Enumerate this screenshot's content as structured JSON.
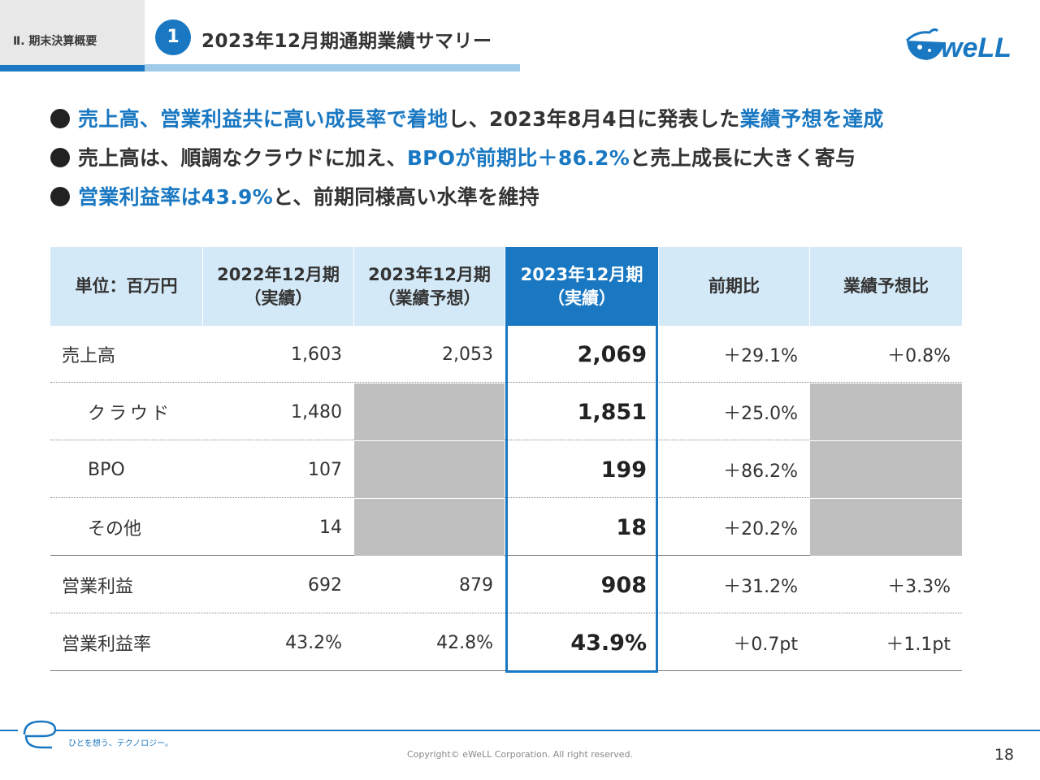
{
  "header": {
    "section": "Ⅱ. 期末決算概要",
    "number": "1",
    "title": "2023年12月期通期業績サマリー",
    "logo": "eWeLL"
  },
  "bullets": [
    {
      "parts": [
        {
          "text": "売上高、営業利益共に高い成長率で着地",
          "highlight": true
        },
        {
          "text": "し、2023年8月4日に発表した",
          "highlight": false
        },
        {
          "text": "業績予想を達成",
          "highlight": true
        }
      ]
    },
    {
      "parts": [
        {
          "text": "売上高は、順調なクラウドに加え、",
          "highlight": false
        },
        {
          "text": "BPOが前期比＋86.2%",
          "highlight": true
        },
        {
          "text": "と売上成長に大きく寄与",
          "highlight": false
        }
      ]
    },
    {
      "parts": [
        {
          "text": "営業利益率は43.9%",
          "highlight": true
        },
        {
          "text": "と、前期同様高い水準を維持",
          "highlight": false
        }
      ]
    }
  ],
  "table": {
    "headers": [
      {
        "line1": "単位：百万円",
        "line2": ""
      },
      {
        "line1": "2022年12月期",
        "line2": "（実績）"
      },
      {
        "line1": "2023年12月期",
        "line2": "（業績予想）"
      },
      {
        "line1": "2023年12月期",
        "line2": "（実績）"
      },
      {
        "line1": "前期比",
        "line2": ""
      },
      {
        "line1": "業績予想比",
        "line2": ""
      }
    ],
    "rows": [
      {
        "label": "売上高",
        "prev": "1,603",
        "forecast": "2,053",
        "actual": "2,069",
        "yoy": "＋29.1%",
        "vs_forecast": "＋0.8%"
      },
      {
        "label": "クラウド",
        "prev": "1,480",
        "forecast": "",
        "actual": "1,851",
        "yoy": "＋25.0%",
        "vs_forecast": ""
      },
      {
        "label": "BPO",
        "prev": "107",
        "forecast": "",
        "actual": "199",
        "yoy": "＋86.2%",
        "vs_forecast": ""
      },
      {
        "label": "その他",
        "prev": "14",
        "forecast": "",
        "actual": "18",
        "yoy": "＋20.2%",
        "vs_forecast": ""
      },
      {
        "label": "営業利益",
        "prev": "692",
        "forecast": "879",
        "actual": "908",
        "yoy": "＋31.2%",
        "vs_forecast": "＋3.3%"
      },
      {
        "label": "営業利益率",
        "prev": "43.2%",
        "forecast": "42.8%",
        "actual": "43.9%",
        "yoy": "＋0.7pt",
        "vs_forecast": "＋1.1pt"
      }
    ]
  },
  "footer": {
    "tagline": "ひとを想う、テクノロジー。",
    "copyright": "Copyright© eWeLL Corporation. All right reserved.",
    "page": "18"
  },
  "colors": {
    "accent": "#1a78c2",
    "header_bg": "#d4e9f7",
    "gray_cell": "#bfbfbf"
  }
}
